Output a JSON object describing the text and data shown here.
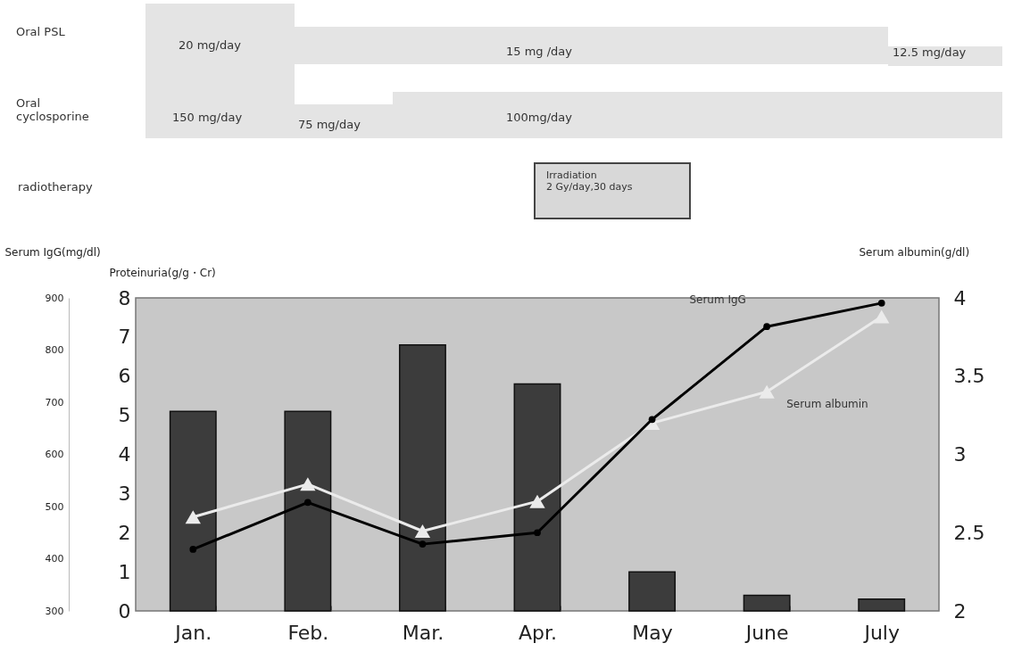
{
  "chart_data": {
    "type": "bar",
    "categories": [
      "Jan.",
      "Feb.",
      "Mar.",
      "Apr.",
      "May",
      "June",
      "July"
    ],
    "ylabel": "Proteinuria(g/g・Cr)",
    "ylim": [
      0,
      8
    ],
    "yticks": [
      0,
      1,
      2,
      3,
      4,
      5,
      6,
      7,
      8
    ],
    "y2label": "Serum albumin(g/dl)",
    "y2lim": [
      2,
      4
    ],
    "y2ticks": [
      2,
      2.5,
      3,
      3.5,
      4
    ],
    "y3label": "Serum IgG(mg/dl)",
    "y3lim": [
      300,
      900
    ],
    "y3ticks": [
      300,
      400,
      500,
      600,
      700,
      800,
      900
    ],
    "series": [
      {
        "color": "#3c3c3c",
        "values": [
          5.1,
          5.1,
          6.8,
          5.8,
          1.0,
          0.4,
          0.3
        ]
      },
      {
        "name": "Serum albumin",
        "type": "line",
        "axis": "y2",
        "color": "#ebebeb",
        "marker": "triangle",
        "values": [
          2.6,
          2.81,
          2.51,
          2.7,
          3.2,
          3.4,
          3.88
        ]
      },
      {
        "name": "Serum IgG",
        "type": "line",
        "axis": "y3",
        "color": "#000000",
        "marker": "circle",
        "values": [
          418,
          508,
          428,
          450,
          667,
          845,
          890
        ]
      }
    ],
    "annotations": [
      "Oral  PSL",
      "20 mg/day",
      "15 mg /day",
      "12.5 mg/day",
      "Oral cyclosporine",
      "150 mg/day",
      "75 mg/day",
      "100mg/day",
      "radiotherapy",
      "Irradiation\n2 Gy/day,30 days"
    ]
  }
}
